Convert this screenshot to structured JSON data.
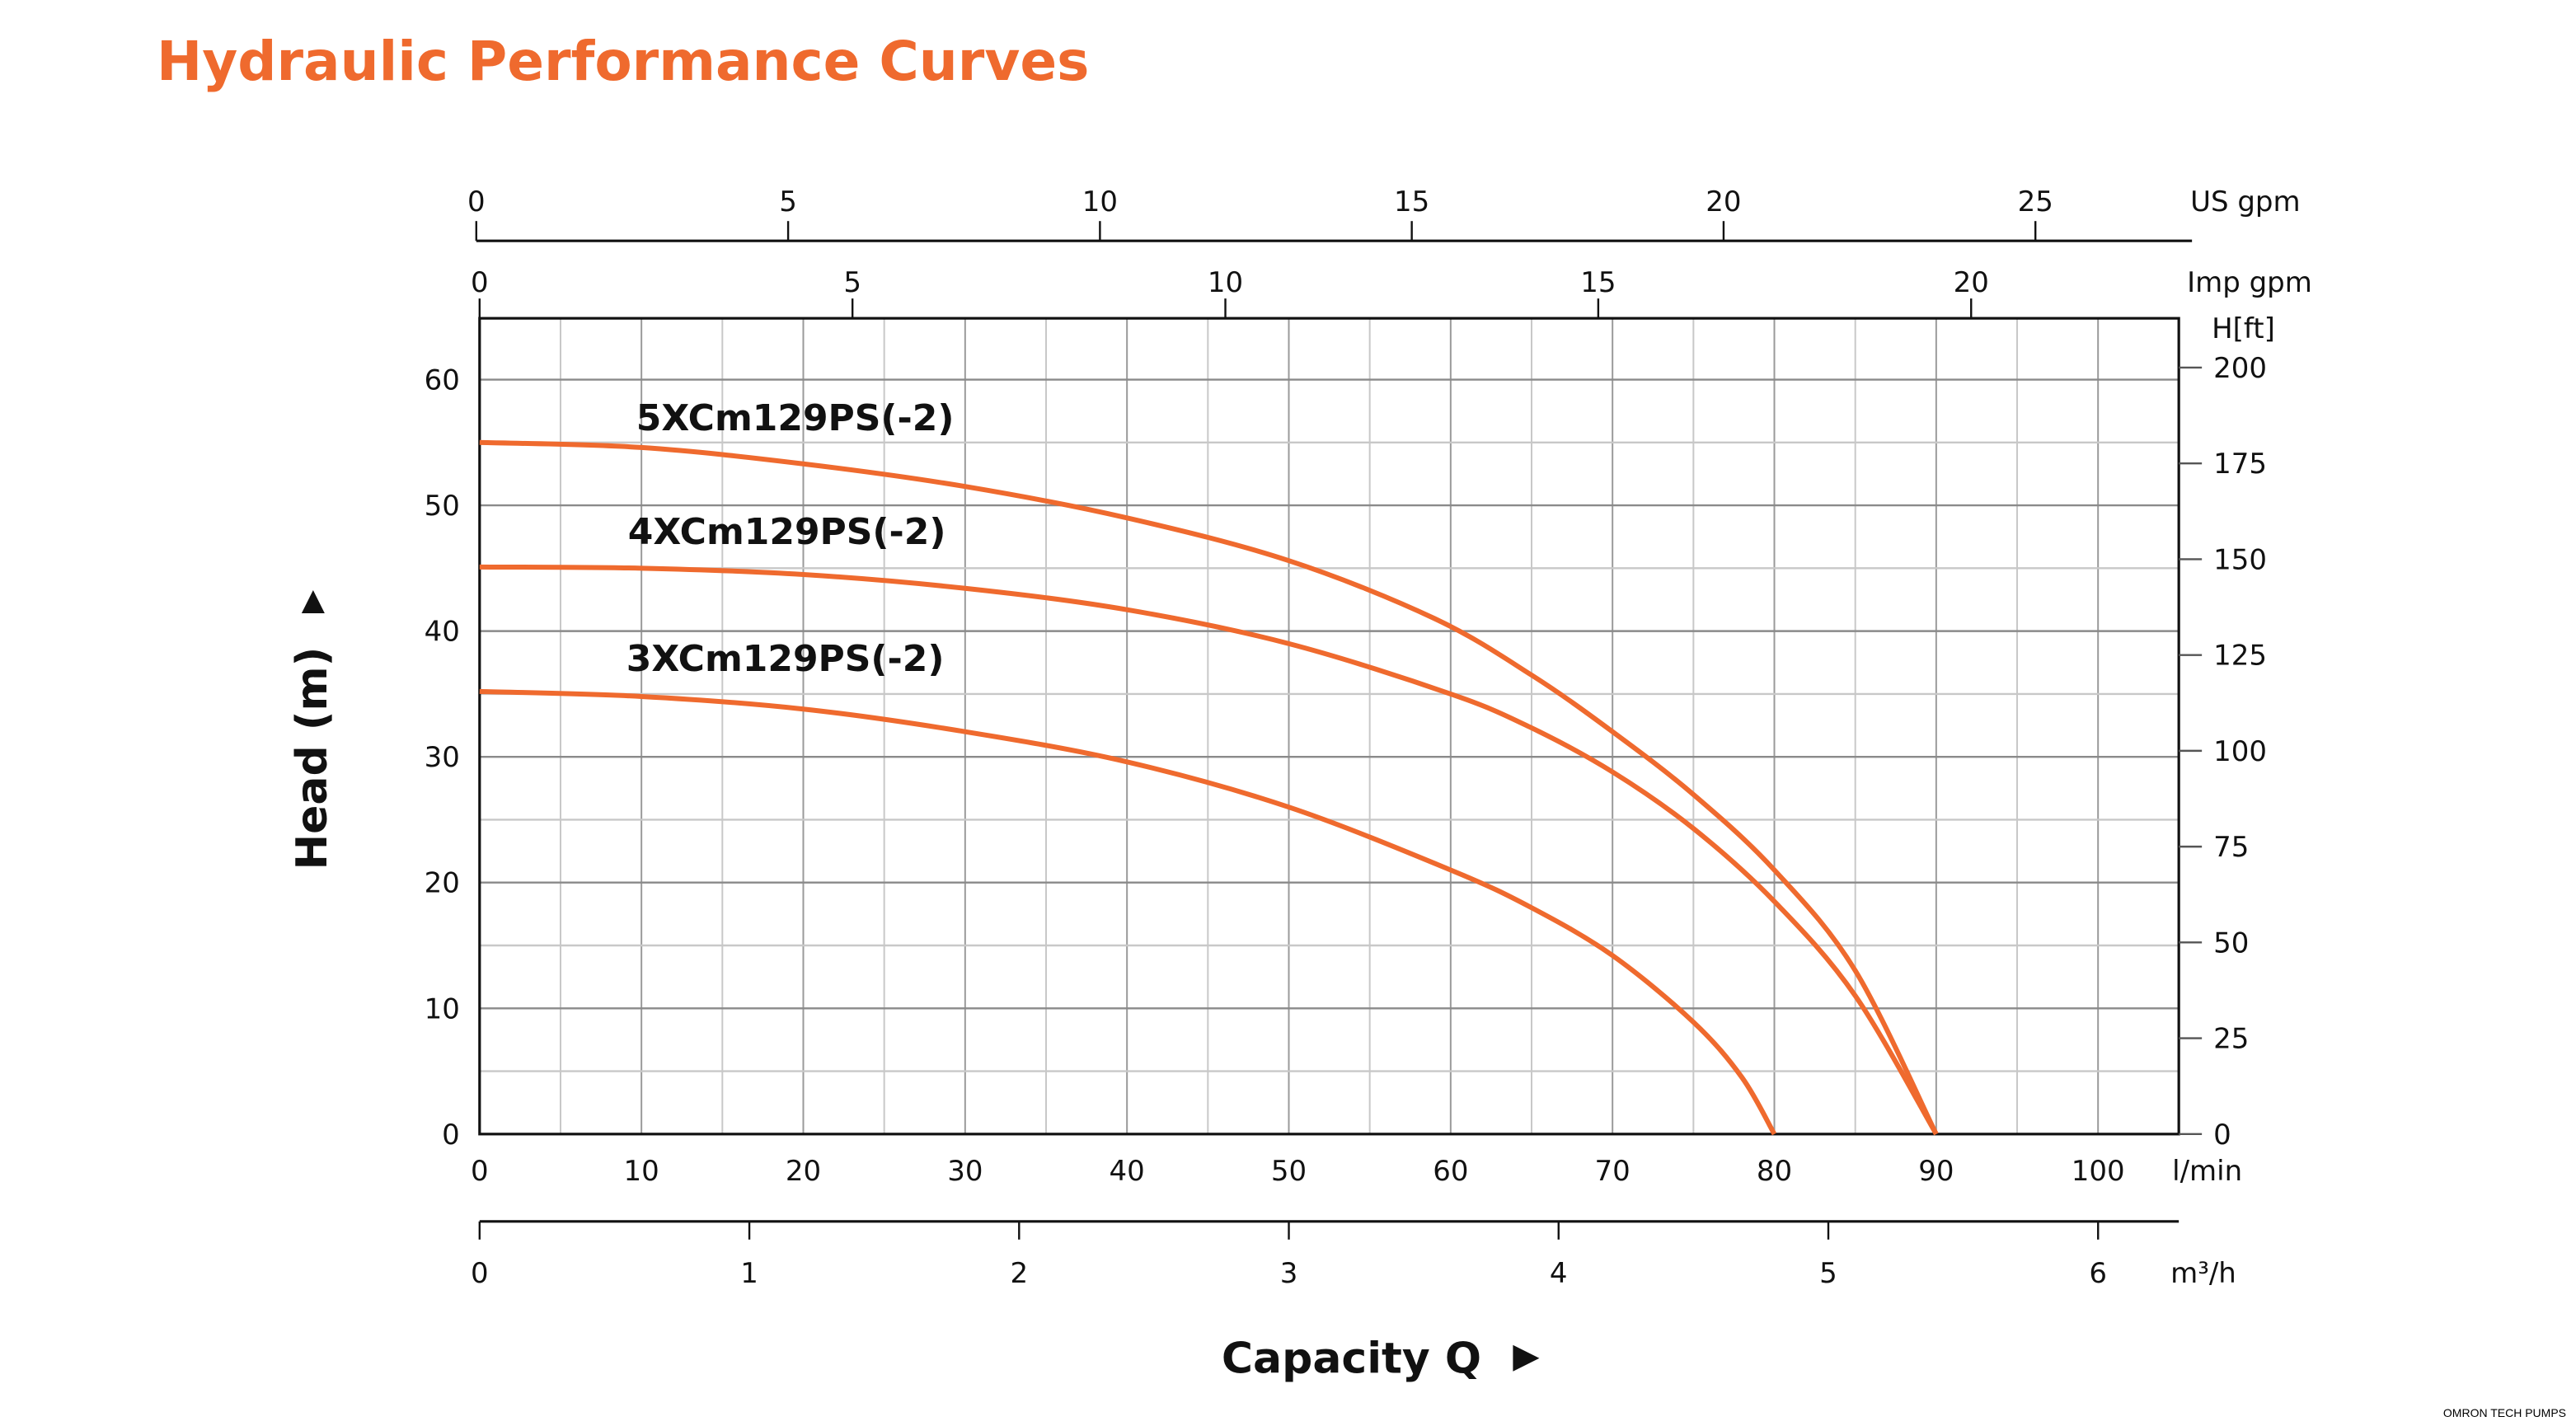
{
  "title": "Hydraulic Performance Curves",
  "footer": "OMRON TECH PUMPS",
  "colors": {
    "title": "#ef6a2e",
    "curve": "#ef6a2e",
    "grid": "#aaaaaa",
    "axis": "#111111"
  },
  "chart_data": {
    "type": "line",
    "xlabel": "Capacity Q",
    "ylabel": "Head (m)",
    "x_unit": "l/min",
    "xlim": [
      0,
      105
    ],
    "ylim": [
      0,
      65
    ],
    "grid": true,
    "x_ticks": [
      0,
      10,
      20,
      30,
      40,
      50,
      60,
      70,
      80,
      90,
      100
    ],
    "y_ticks": [
      0,
      10,
      20,
      30,
      40,
      50,
      60
    ],
    "secondary_axes": {
      "us_gpm": {
        "label": "US gpm",
        "ticks": [
          0,
          5,
          10,
          15,
          20,
          25
        ]
      },
      "imp_gpm": {
        "label": "Imp gpm",
        "ticks": [
          0,
          5,
          10,
          15,
          20
        ]
      },
      "m3h": {
        "label": "m³/h",
        "ticks": [
          0,
          1,
          2,
          3,
          4,
          5,
          6
        ]
      },
      "head_ft": {
        "label": "H[ft]",
        "ticks": [
          0,
          25,
          50,
          75,
          100,
          125,
          150,
          175,
          200
        ]
      }
    },
    "series": [
      {
        "name": "5XCm129PS(-2)",
        "x": [
          0,
          10,
          20,
          30,
          40,
          50,
          59,
          65,
          70,
          75,
          80,
          85,
          90
        ],
        "y": [
          55,
          54.6,
          53.3,
          51.5,
          49,
          45.6,
          41,
          36.5,
          32,
          27,
          21,
          13,
          0
        ]
      },
      {
        "name": "4XCm129PS(-2)",
        "x": [
          0,
          10,
          20,
          30,
          40,
          50,
          60,
          65,
          70,
          75,
          80,
          85,
          90
        ],
        "y": [
          45.1,
          45,
          44.5,
          43.4,
          41.7,
          39,
          35,
          32.3,
          28.8,
          24.3,
          18.5,
          11,
          0
        ]
      },
      {
        "name": "3XCm129PS(-2)",
        "x": [
          0,
          10,
          20,
          30,
          40,
          50,
          60,
          65,
          70,
          75,
          78,
          80
        ],
        "y": [
          35.2,
          34.8,
          33.8,
          32,
          29.6,
          26,
          21,
          18,
          14.2,
          8.9,
          4.5,
          0
        ]
      }
    ]
  }
}
